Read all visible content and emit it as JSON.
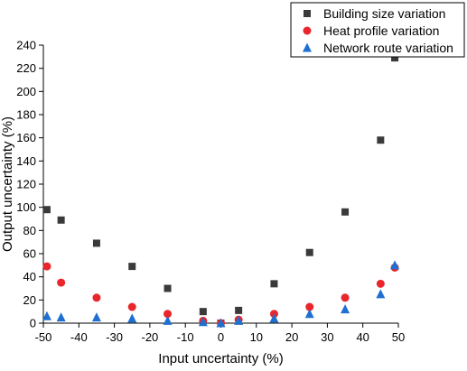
{
  "chart_data": {
    "type": "scatter",
    "title": "",
    "xlabel": "Input uncertainty (%)",
    "ylabel": "Output uncertainty (%)",
    "xlim": [
      -50,
      50
    ],
    "ylim": [
      0,
      240
    ],
    "xticks": [
      -50,
      -40,
      -30,
      -20,
      -10,
      0,
      10,
      20,
      30,
      40,
      50
    ],
    "yticks": [
      0,
      20,
      40,
      60,
      80,
      100,
      120,
      140,
      160,
      180,
      200,
      220,
      240
    ],
    "grid": false,
    "legend_position": "top-right",
    "series": [
      {
        "name": "Building size variation",
        "marker": "square",
        "color": "#3a3a3a",
        "x": [
          -49,
          -45,
          -35,
          -25,
          -15,
          -5,
          0,
          5,
          15,
          25,
          35,
          45,
          49
        ],
        "y": [
          98,
          89,
          69,
          49,
          30,
          10,
          0,
          11,
          34,
          61,
          96,
          158,
          229
        ]
      },
      {
        "name": "Heat profile variation",
        "marker": "circle",
        "color": "#e8262b",
        "x": [
          -49,
          -45,
          -35,
          -25,
          -15,
          -5,
          0,
          5,
          15,
          25,
          35,
          45,
          49
        ],
        "y": [
          49,
          35,
          22,
          14,
          8,
          2,
          0,
          3,
          8,
          14,
          22,
          34,
          48
        ]
      },
      {
        "name": "Network route variation",
        "marker": "triangle",
        "color": "#1f6fd1",
        "x": [
          -49,
          -45,
          -35,
          -25,
          -15,
          -5,
          0,
          5,
          15,
          25,
          35,
          45,
          49
        ],
        "y": [
          6,
          5,
          5,
          4,
          2,
          1,
          0,
          2,
          4,
          8,
          12,
          25,
          50
        ]
      }
    ]
  }
}
